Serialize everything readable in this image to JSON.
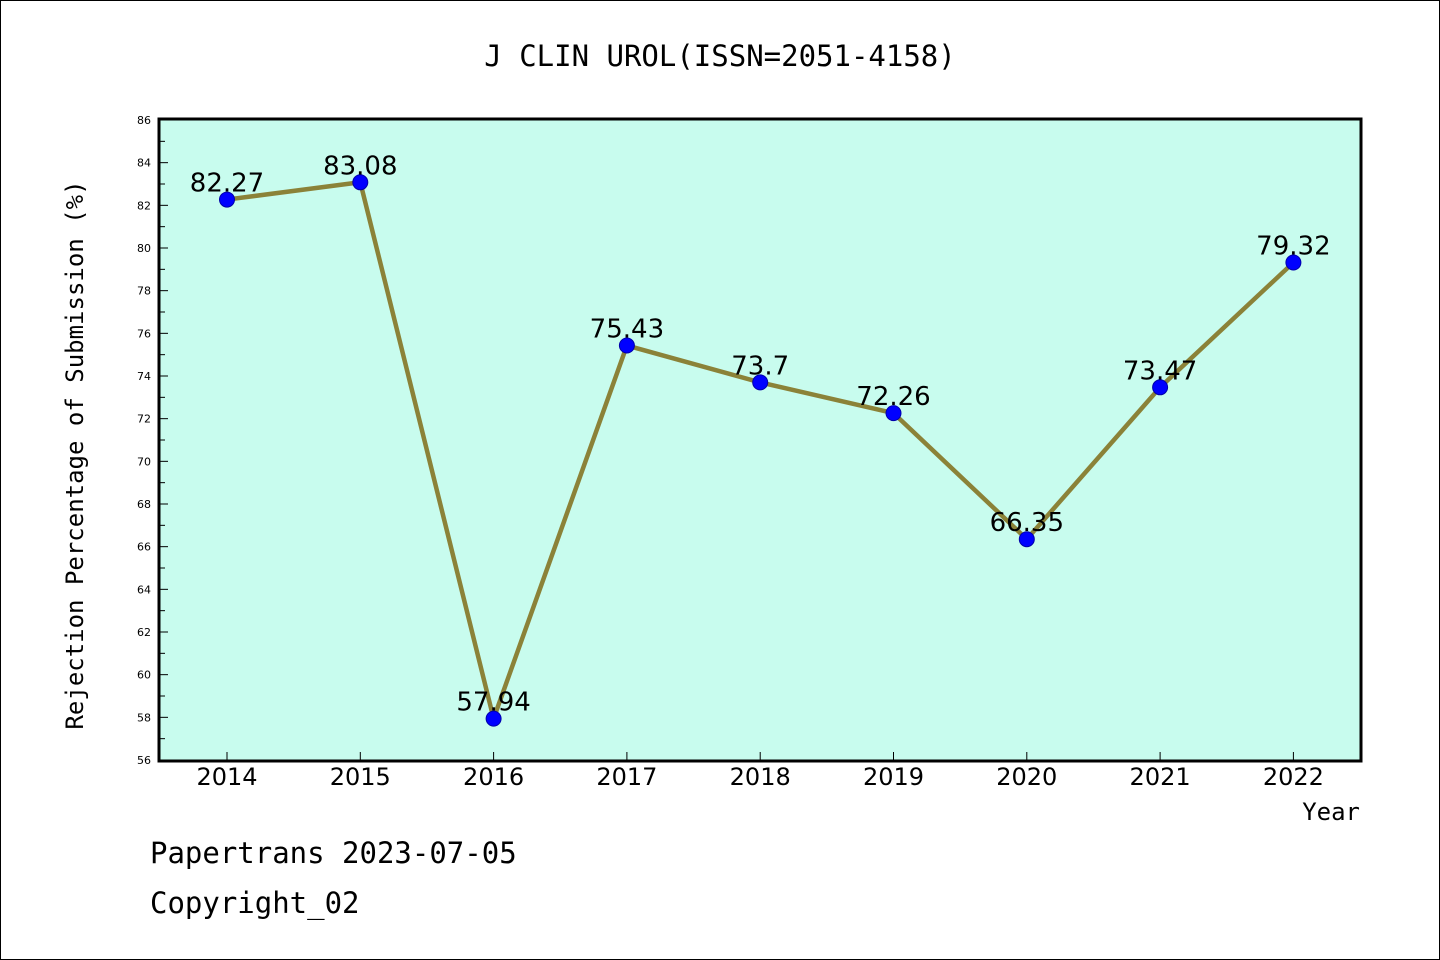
{
  "chart_data": {
    "type": "line",
    "title": "J CLIN UROL(ISSN=2051-4158)",
    "xlabel": "Year",
    "ylabel": "Rejection Percentage of Submission (%)",
    "categories": [
      "2014",
      "2015",
      "2016",
      "2017",
      "2018",
      "2019",
      "2020",
      "2021",
      "2022"
    ],
    "values": [
      82.27,
      83.08,
      57.94,
      75.43,
      73.7,
      72.26,
      66.35,
      73.47,
      79.32
    ],
    "data_labels": [
      "82.27",
      "83.08",
      "57.94",
      "75.43",
      "73.7",
      "72.26",
      "66.35",
      "73.47",
      "79.32"
    ],
    "ylim": [
      56,
      86
    ],
    "yticks": [
      56,
      58,
      60,
      62,
      64,
      66,
      68,
      70,
      72,
      74,
      76,
      78,
      80,
      82,
      84,
      86
    ],
    "grid": false,
    "legend": "none",
    "colors": {
      "plot_background": "#c8fcee",
      "line": "#8b8238",
      "marker": "#0000ff"
    }
  },
  "footer": {
    "line1": "Papertrans 2023-07-05",
    "line2": "Copyright_02"
  }
}
